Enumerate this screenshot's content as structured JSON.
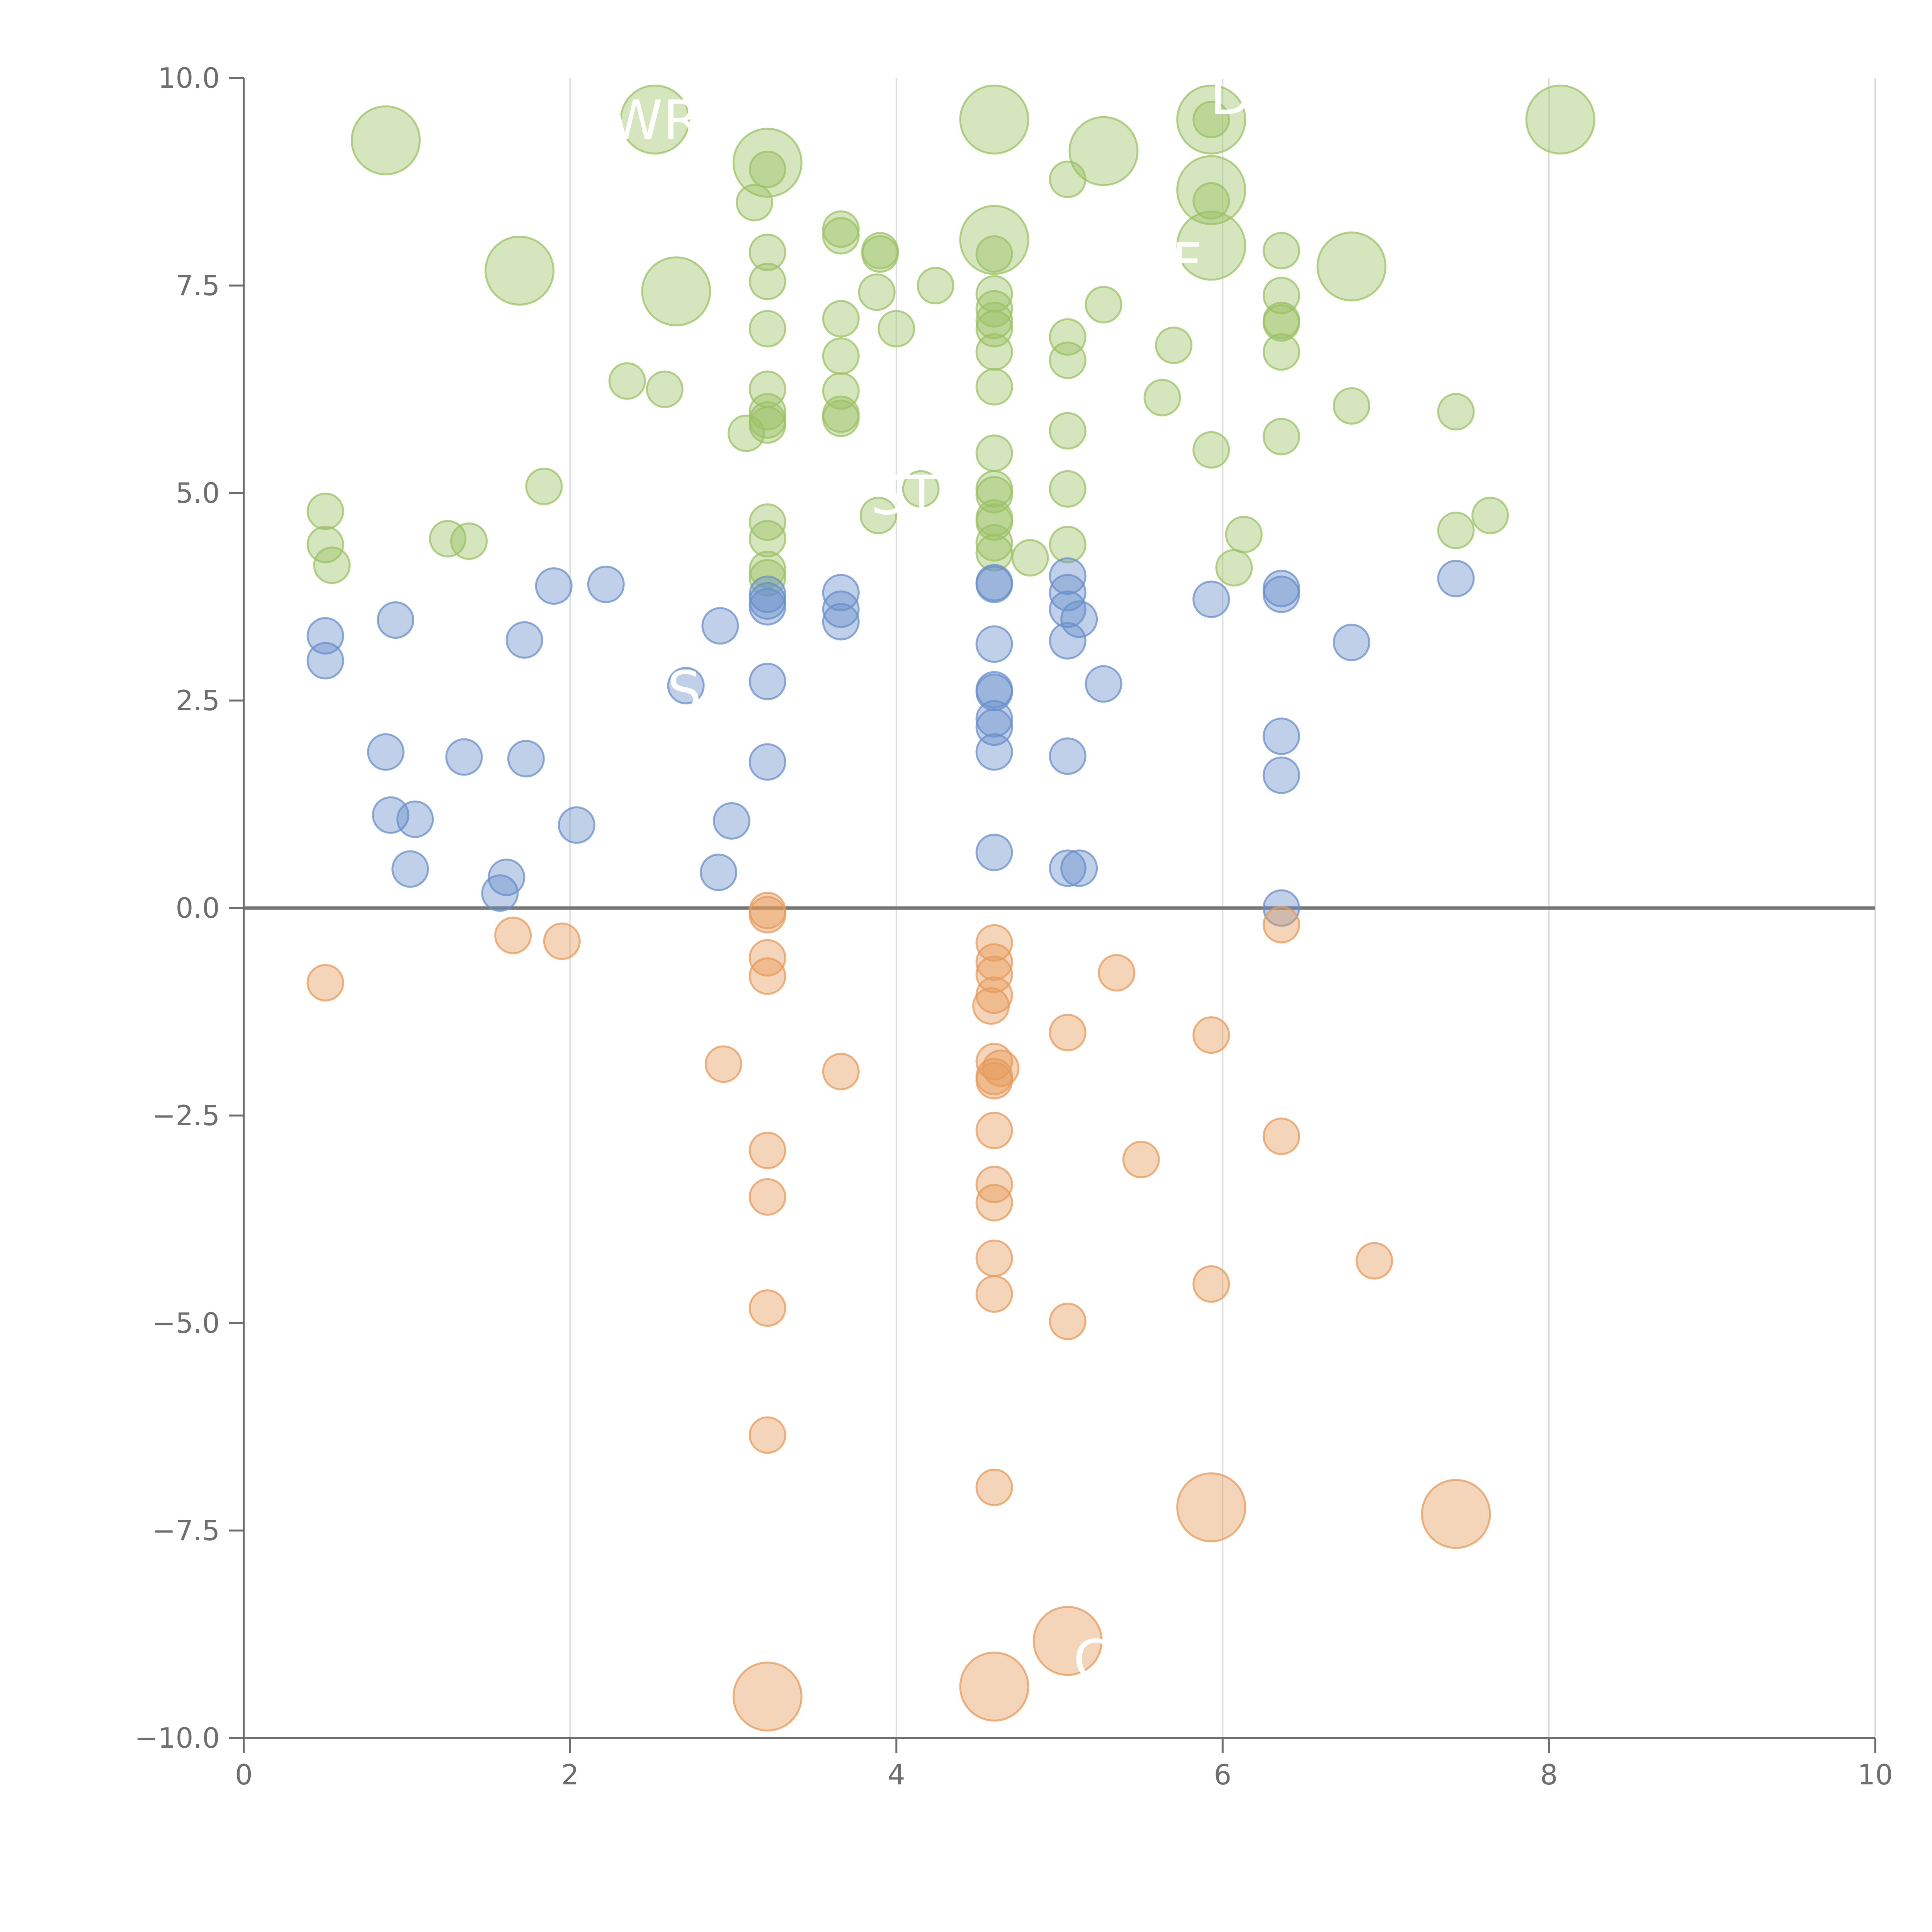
{
  "chart_data": {
    "type": "scatter",
    "title": "",
    "xlabel": "",
    "ylabel": "",
    "xlim": [
      0,
      10
    ],
    "ylim": [
      -10,
      10
    ],
    "x_ticks": [
      0,
      2,
      4,
      6,
      8,
      10
    ],
    "x_tick_labels": [
      "0",
      "2",
      "4",
      "6",
      "8",
      "10"
    ],
    "y_ticks": [
      -10,
      -7.5,
      -5,
      -2.5,
      0,
      2.5,
      5,
      7.5,
      10
    ],
    "y_tick_labels": [
      "−10.0",
      "−7.5",
      "−5.0",
      "−2.5",
      "0.0",
      "2.5",
      "5.0",
      "7.5",
      "10.0"
    ],
    "grid": "vertical",
    "zero_line": 0,
    "colors": {
      "high": "#9bc163",
      "mid": "#6a8fcb",
      "low": "#e79a59",
      "axis": "#6e6e6e",
      "grid": "#dddddd",
      "zero": "#777777",
      "label": "#ffffff"
    },
    "series": [
      {
        "name": "high",
        "points": [
          [
            0.87,
            9.25,
            2
          ],
          [
            2.52,
            9.5,
            2
          ],
          [
            3.21,
            8.98,
            2
          ],
          [
            4.6,
            9.5,
            2
          ],
          [
            5.27,
            9.12,
            2
          ],
          [
            5.93,
            9.5,
            2
          ],
          [
            5.93,
            8.65,
            2
          ],
          [
            8.07,
            9.5,
            2
          ],
          [
            1.69,
            7.68,
            2
          ],
          [
            2.65,
            7.43,
            2
          ],
          [
            4.6,
            8.05,
            2
          ],
          [
            5.93,
            7.98,
            2
          ],
          [
            6.79,
            7.73,
            2
          ],
          [
            3.21,
            8.9,
            1
          ],
          [
            3.13,
            8.5,
            1
          ],
          [
            3.21,
            7.9,
            1
          ],
          [
            3.21,
            7.55,
            1
          ],
          [
            3.21,
            6.98,
            1
          ],
          [
            3.66,
            8.18,
            1
          ],
          [
            3.66,
            8.1,
            1
          ],
          [
            3.9,
            7.92,
            1
          ],
          [
            3.9,
            7.88,
            1
          ],
          [
            4.24,
            7.5,
            1
          ],
          [
            3.88,
            7.42,
            1
          ],
          [
            3.66,
            7.1,
            1
          ],
          [
            4.0,
            6.98,
            1
          ],
          [
            3.66,
            6.65,
            1
          ],
          [
            3.66,
            6.23,
            1
          ],
          [
            3.66,
            5.9,
            1
          ],
          [
            3.66,
            5.95,
            1
          ],
          [
            3.21,
            6.25,
            1
          ],
          [
            3.21,
            5.98,
            1
          ],
          [
            3.21,
            5.88,
            1
          ],
          [
            3.21,
            5.82,
            1
          ],
          [
            3.08,
            5.72,
            1
          ],
          [
            2.35,
            6.35,
            1
          ],
          [
            2.58,
            6.25,
            1
          ],
          [
            4.6,
            7.88,
            1
          ],
          [
            4.6,
            7.4,
            1
          ],
          [
            4.6,
            7.22,
            1
          ],
          [
            4.6,
            7.08,
            1
          ],
          [
            4.6,
            6.98,
            1
          ],
          [
            4.6,
            6.7,
            1
          ],
          [
            4.6,
            6.28,
            1
          ],
          [
            4.6,
            5.48,
            1
          ],
          [
            4.6,
            5.05,
            1
          ],
          [
            4.6,
            4.98,
            1
          ],
          [
            4.6,
            4.7,
            1
          ],
          [
            4.6,
            4.65,
            1
          ],
          [
            4.6,
            4.4,
            1
          ],
          [
            4.6,
            4.28,
            1
          ],
          [
            4.82,
            4.22,
            1
          ],
          [
            5.05,
            8.78,
            1
          ],
          [
            5.05,
            6.88,
            1
          ],
          [
            5.05,
            6.6,
            1
          ],
          [
            5.05,
            5.75,
            1
          ],
          [
            5.05,
            5.05,
            1
          ],
          [
            5.05,
            4.38,
            1
          ],
          [
            5.27,
            7.27,
            1
          ],
          [
            5.93,
            9.5,
            1
          ],
          [
            5.93,
            8.52,
            1
          ],
          [
            5.7,
            6.78,
            1
          ],
          [
            5.63,
            6.15,
            1
          ],
          [
            5.93,
            5.52,
            1
          ],
          [
            6.36,
            7.92,
            1
          ],
          [
            6.36,
            7.38,
            1
          ],
          [
            6.36,
            7.08,
            1
          ],
          [
            6.36,
            7.05,
            1
          ],
          [
            6.36,
            6.7,
            1
          ],
          [
            6.36,
            5.68,
            1
          ],
          [
            6.13,
            4.5,
            1
          ],
          [
            6.07,
            4.1,
            1
          ],
          [
            6.79,
            6.05,
            1
          ],
          [
            7.43,
            5.98,
            1
          ],
          [
            7.43,
            4.55,
            1
          ],
          [
            7.64,
            4.73,
            1
          ],
          [
            3.21,
            4.65,
            1
          ],
          [
            3.21,
            4.45,
            1
          ],
          [
            3.21,
            4.08,
            1
          ],
          [
            3.21,
            3.98,
            1
          ],
          [
            3.89,
            4.73,
            1
          ],
          [
            4.15,
            5.05,
            1
          ],
          [
            0.5,
            4.78,
            1
          ],
          [
            0.5,
            4.38,
            1
          ],
          [
            0.54,
            4.13,
            1
          ],
          [
            1.25,
            4.45,
            1
          ],
          [
            1.38,
            4.42,
            1
          ],
          [
            1.84,
            5.08,
            1
          ]
        ]
      },
      {
        "name": "mid",
        "points": [
          [
            0.5,
            3.28,
            1
          ],
          [
            0.5,
            2.98,
            1
          ],
          [
            0.93,
            3.47,
            1
          ],
          [
            1.72,
            3.23,
            1
          ],
          [
            1.9,
            3.88,
            1
          ],
          [
            2.22,
            3.9,
            1
          ],
          [
            2.92,
            3.4,
            1
          ],
          [
            2.71,
            2.68,
            1
          ],
          [
            3.21,
            3.78,
            1
          ],
          [
            3.21,
            3.7,
            1
          ],
          [
            3.21,
            3.63,
            1
          ],
          [
            3.21,
            2.73,
            1
          ],
          [
            3.21,
            1.76,
            1
          ],
          [
            3.66,
            3.8,
            1
          ],
          [
            3.66,
            3.6,
            1
          ],
          [
            3.66,
            3.45,
            1
          ],
          [
            4.6,
            3.92,
            1
          ],
          [
            4.6,
            3.9,
            1
          ],
          [
            4.6,
            3.18,
            1
          ],
          [
            4.6,
            2.63,
            1
          ],
          [
            4.6,
            2.6,
            1
          ],
          [
            4.6,
            2.28,
            1
          ],
          [
            4.6,
            2.18,
            1
          ],
          [
            4.6,
            1.88,
            1
          ],
          [
            4.6,
            0.67,
            1
          ],
          [
            5.05,
            4.0,
            1
          ],
          [
            5.05,
            3.8,
            1
          ],
          [
            5.05,
            3.6,
            1
          ],
          [
            5.12,
            3.48,
            1
          ],
          [
            5.05,
            3.22,
            1
          ],
          [
            5.27,
            2.7,
            1
          ],
          [
            5.05,
            1.83,
            1
          ],
          [
            5.05,
            0.48,
            1
          ],
          [
            5.12,
            0.48,
            1
          ],
          [
            5.93,
            3.72,
            1
          ],
          [
            6.36,
            3.85,
            1
          ],
          [
            6.36,
            3.78,
            1
          ],
          [
            6.36,
            2.07,
            1
          ],
          [
            6.36,
            1.6,
            1
          ],
          [
            6.36,
            0.0,
            1
          ],
          [
            6.79,
            3.2,
            1
          ],
          [
            7.43,
            3.97,
            1
          ],
          [
            0.87,
            1.88,
            1
          ],
          [
            0.9,
            1.12,
            1
          ],
          [
            1.05,
            1.07,
            1
          ],
          [
            1.35,
            1.82,
            1
          ],
          [
            1.73,
            1.8,
            1
          ],
          [
            2.04,
            1.0,
            1
          ],
          [
            2.99,
            1.05,
            1
          ],
          [
            1.02,
            0.47,
            1
          ],
          [
            1.61,
            0.37,
            1
          ],
          [
            1.57,
            0.18,
            1
          ],
          [
            2.91,
            0.43,
            1
          ]
        ]
      },
      {
        "name": "low",
        "points": [
          [
            0.5,
            -0.9,
            1
          ],
          [
            1.65,
            -0.33,
            1
          ],
          [
            1.95,
            -0.4,
            1
          ],
          [
            3.21,
            -0.03,
            1
          ],
          [
            3.21,
            -0.08,
            1
          ],
          [
            3.21,
            -0.6,
            1
          ],
          [
            3.21,
            -0.82,
            1
          ],
          [
            4.6,
            -0.42,
            1
          ],
          [
            4.6,
            -0.65,
            1
          ],
          [
            4.6,
            -0.8,
            1
          ],
          [
            4.6,
            -1.05,
            1
          ],
          [
            4.58,
            -1.18,
            1
          ],
          [
            5.35,
            -0.78,
            1
          ],
          [
            6.36,
            -0.2,
            1
          ],
          [
            5.05,
            -1.5,
            1
          ],
          [
            5.93,
            -1.53,
            1
          ],
          [
            2.94,
            -1.88,
            1
          ],
          [
            3.66,
            -1.97,
            1
          ],
          [
            4.6,
            -1.85,
            1
          ],
          [
            4.64,
            -1.93,
            1
          ],
          [
            4.6,
            -2.03,
            1
          ],
          [
            4.6,
            -2.08,
            1
          ],
          [
            4.6,
            -2.68,
            1
          ],
          [
            3.21,
            -2.92,
            1
          ],
          [
            3.21,
            -3.48,
            1
          ],
          [
            4.6,
            -3.33,
            1
          ],
          [
            4.6,
            -3.55,
            1
          ],
          [
            5.5,
            -3.03,
            1
          ],
          [
            6.36,
            -2.75,
            1
          ],
          [
            4.6,
            -4.22,
            1
          ],
          [
            4.6,
            -4.65,
            1
          ],
          [
            5.93,
            -4.53,
            1
          ],
          [
            6.93,
            -4.25,
            1
          ],
          [
            3.21,
            -4.82,
            1
          ],
          [
            5.05,
            -4.98,
            1
          ],
          [
            3.21,
            -6.35,
            1
          ],
          [
            4.6,
            -6.98,
            1
          ],
          [
            5.93,
            -7.22,
            2
          ],
          [
            7.43,
            -7.3,
            2
          ],
          [
            5.05,
            -8.83,
            2
          ],
          [
            4.6,
            -9.38,
            2
          ],
          [
            3.21,
            -9.5,
            2
          ]
        ]
      }
    ],
    "annotations": [
      {
        "text": "WR",
        "x": 2.52,
        "y": 9.5,
        "series": "high"
      },
      {
        "text": "D",
        "x": 6.05,
        "y": 9.8,
        "series": "high"
      },
      {
        "text": "F",
        "x": 5.78,
        "y": 7.78,
        "series": "high"
      },
      {
        "text": "ST",
        "x": 4.05,
        "y": 4.98,
        "series": "high"
      },
      {
        "text": "S",
        "x": 2.7,
        "y": 2.62,
        "series": "mid"
      },
      {
        "text": "C",
        "x": 5.2,
        "y": -9.05,
        "series": "low"
      }
    ]
  }
}
